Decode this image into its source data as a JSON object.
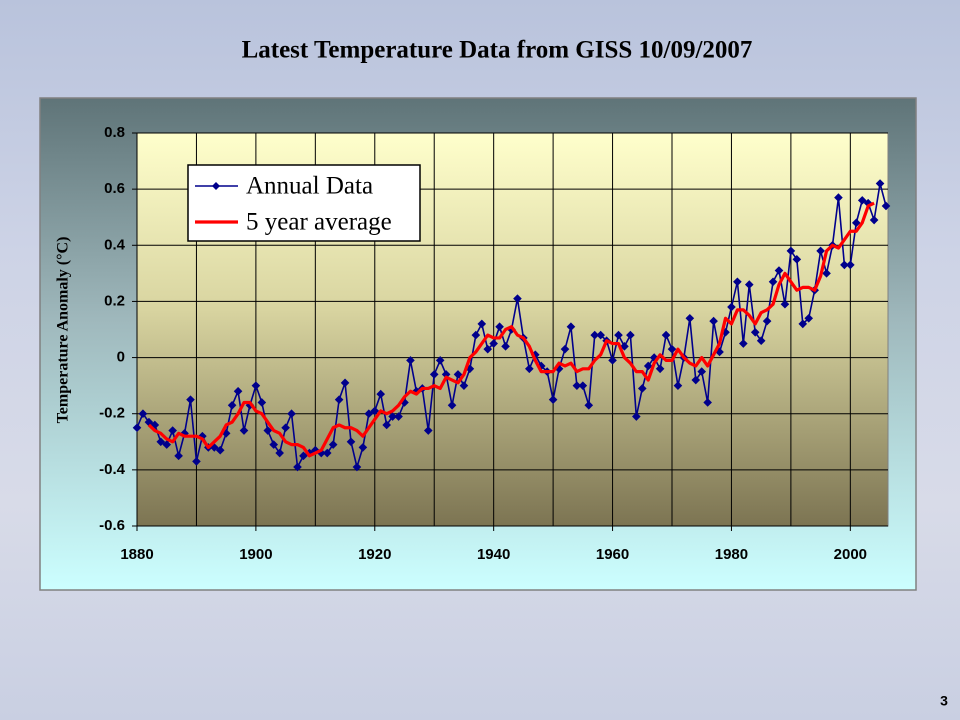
{
  "page_number": "3",
  "chart_data": {
    "type": "line",
    "title": "Latest Temperature Data from GISS 10/09/2007",
    "y_label": "Temperature Anomaly (°C)",
    "x": [
      1880,
      1881,
      1882,
      1883,
      1884,
      1885,
      1886,
      1887,
      1888,
      1889,
      1890,
      1891,
      1892,
      1893,
      1894,
      1895,
      1896,
      1897,
      1898,
      1899,
      1900,
      1901,
      1902,
      1903,
      1904,
      1905,
      1906,
      1907,
      1908,
      1909,
      1910,
      1911,
      1912,
      1913,
      1914,
      1915,
      1916,
      1917,
      1918,
      1919,
      1920,
      1921,
      1922,
      1923,
      1924,
      1925,
      1926,
      1927,
      1928,
      1929,
      1930,
      1931,
      1932,
      1933,
      1934,
      1935,
      1936,
      1937,
      1938,
      1939,
      1940,
      1941,
      1942,
      1943,
      1944,
      1945,
      1946,
      1947,
      1948,
      1949,
      1950,
      1951,
      1952,
      1953,
      1954,
      1955,
      1956,
      1957,
      1958,
      1959,
      1960,
      1961,
      1962,
      1963,
      1964,
      1965,
      1966,
      1967,
      1968,
      1969,
      1970,
      1971,
      1972,
      1973,
      1974,
      1975,
      1976,
      1977,
      1978,
      1979,
      1980,
      1981,
      1982,
      1983,
      1984,
      1985,
      1986,
      1987,
      1988,
      1989,
      1990,
      1991,
      1992,
      1993,
      1994,
      1995,
      1996,
      1997,
      1998,
      1999,
      2000,
      2001,
      2002,
      2003,
      2004,
      2005,
      2006
    ],
    "series": [
      {
        "name": "Annual Data",
        "color": "#00008c",
        "marker": "diamond",
        "values": [
          -0.25,
          -0.2,
          -0.23,
          -0.24,
          -0.3,
          -0.31,
          -0.26,
          -0.35,
          -0.27,
          -0.15,
          -0.37,
          -0.28,
          -0.32,
          -0.32,
          -0.33,
          -0.27,
          -0.17,
          -0.12,
          -0.26,
          -0.17,
          -0.1,
          -0.16,
          -0.26,
          -0.31,
          -0.34,
          -0.25,
          -0.2,
          -0.39,
          -0.35,
          -0.34,
          -0.33,
          -0.34,
          -0.34,
          -0.31,
          -0.15,
          -0.09,
          -0.3,
          -0.39,
          -0.32,
          -0.2,
          -0.19,
          -0.13,
          -0.24,
          -0.21,
          -0.21,
          -0.16,
          -0.01,
          -0.12,
          -0.11,
          -0.26,
          -0.06,
          -0.01,
          -0.06,
          -0.17,
          -0.06,
          -0.1,
          -0.04,
          0.08,
          0.12,
          0.03,
          0.05,
          0.11,
          0.04,
          0.1,
          0.21,
          0.07,
          -0.04,
          0.01,
          -0.03,
          -0.05,
          -0.15,
          -0.04,
          0.03,
          0.11,
          -0.1,
          -0.1,
          -0.17,
          0.08,
          0.08,
          0.06,
          -0.01,
          0.08,
          0.04,
          0.08,
          -0.21,
          -0.11,
          -0.03,
          0.0,
          -0.04,
          0.08,
          0.03,
          -0.1,
          0.0,
          0.14,
          -0.08,
          -0.05,
          -0.16,
          0.13,
          0.02,
          0.09,
          0.18,
          0.27,
          0.05,
          0.26,
          0.09,
          0.06,
          0.13,
          0.27,
          0.31,
          0.19,
          0.38,
          0.35,
          0.12,
          0.14,
          0.24,
          0.38,
          0.3,
          0.4,
          0.57,
          0.33,
          0.33,
          0.48,
          0.56,
          0.55,
          0.49,
          0.62,
          0.54
        ]
      },
      {
        "name": "5 year average",
        "color": "#ff0000",
        "values": [
          null,
          null,
          -0.24,
          -0.26,
          -0.27,
          -0.29,
          -0.3,
          -0.27,
          -0.28,
          -0.28,
          -0.28,
          -0.29,
          -0.32,
          -0.3,
          -0.28,
          -0.24,
          -0.23,
          -0.2,
          -0.16,
          -0.16,
          -0.19,
          -0.2,
          -0.23,
          -0.26,
          -0.27,
          -0.3,
          -0.31,
          -0.31,
          -0.32,
          -0.35,
          -0.34,
          -0.33,
          -0.29,
          -0.25,
          -0.24,
          -0.25,
          -0.25,
          -0.26,
          -0.28,
          -0.25,
          -0.22,
          -0.19,
          -0.2,
          -0.19,
          -0.17,
          -0.14,
          -0.12,
          -0.13,
          -0.11,
          -0.11,
          -0.1,
          -0.11,
          -0.07,
          -0.08,
          -0.09,
          -0.06,
          0.0,
          0.02,
          0.05,
          0.08,
          0.07,
          0.07,
          0.1,
          0.11,
          0.08,
          0.07,
          0.04,
          -0.01,
          -0.05,
          -0.05,
          -0.05,
          -0.02,
          -0.03,
          -0.02,
          -0.05,
          -0.04,
          -0.04,
          -0.01,
          0.01,
          0.06,
          0.05,
          0.05,
          0.0,
          -0.02,
          -0.05,
          -0.05,
          -0.08,
          -0.02,
          0.01,
          -0.01,
          -0.01,
          0.03,
          0.0,
          -0.02,
          -0.03,
          0.0,
          -0.03,
          0.01,
          0.05,
          0.14,
          0.12,
          0.17,
          0.17,
          0.15,
          0.12,
          0.16,
          0.17,
          0.19,
          0.26,
          0.3,
          0.27,
          0.24,
          0.25,
          0.25,
          0.24,
          0.29,
          0.38,
          0.4,
          0.39,
          0.42,
          0.45,
          0.45,
          0.48,
          0.54,
          0.55,
          null,
          null
        ]
      }
    ],
    "xlim": [
      1880,
      2006
    ],
    "xticks": [
      1880,
      1900,
      1920,
      1940,
      1960,
      1980,
      2000
    ],
    "ylim": [
      -0.6,
      0.8
    ],
    "yticks": [
      0.8,
      0.6,
      0.4,
      0.2,
      0,
      -0.2,
      -0.4,
      -0.6
    ],
    "grid": true,
    "legend": "upper left"
  }
}
